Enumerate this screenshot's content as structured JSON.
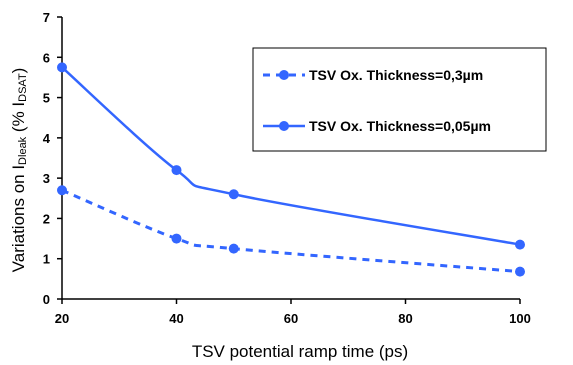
{
  "chart_data": {
    "type": "line",
    "xlabel": "TSV potential ramp time (ps)",
    "ylabel_prefix": "Variations on I",
    "ylabel_sub1": "Dleak",
    "ylabel_mid": " (% I",
    "ylabel_sub2": "DSAT",
    "ylabel_suffix": ")",
    "xlim": [
      20,
      100
    ],
    "ylim": [
      0,
      7
    ],
    "xticks": [
      20,
      40,
      60,
      80,
      100
    ],
    "yticks": [
      0,
      1,
      2,
      3,
      4,
      5,
      6,
      7
    ],
    "grid": false,
    "legend_position": "top-right",
    "series": [
      {
        "name": "TSV Ox. Thickness=0,3µm",
        "style": "dashed",
        "color": "#3366ff",
        "x": [
          20,
          40,
          50,
          100
        ],
        "y": [
          2.7,
          1.5,
          1.25,
          0.68
        ]
      },
      {
        "name": "TSV Ox. Thickness=0,05µm",
        "style": "solid",
        "color": "#3366ff",
        "x": [
          20,
          40,
          50,
          100
        ],
        "y": [
          5.75,
          3.2,
          2.6,
          1.35
        ]
      }
    ]
  }
}
